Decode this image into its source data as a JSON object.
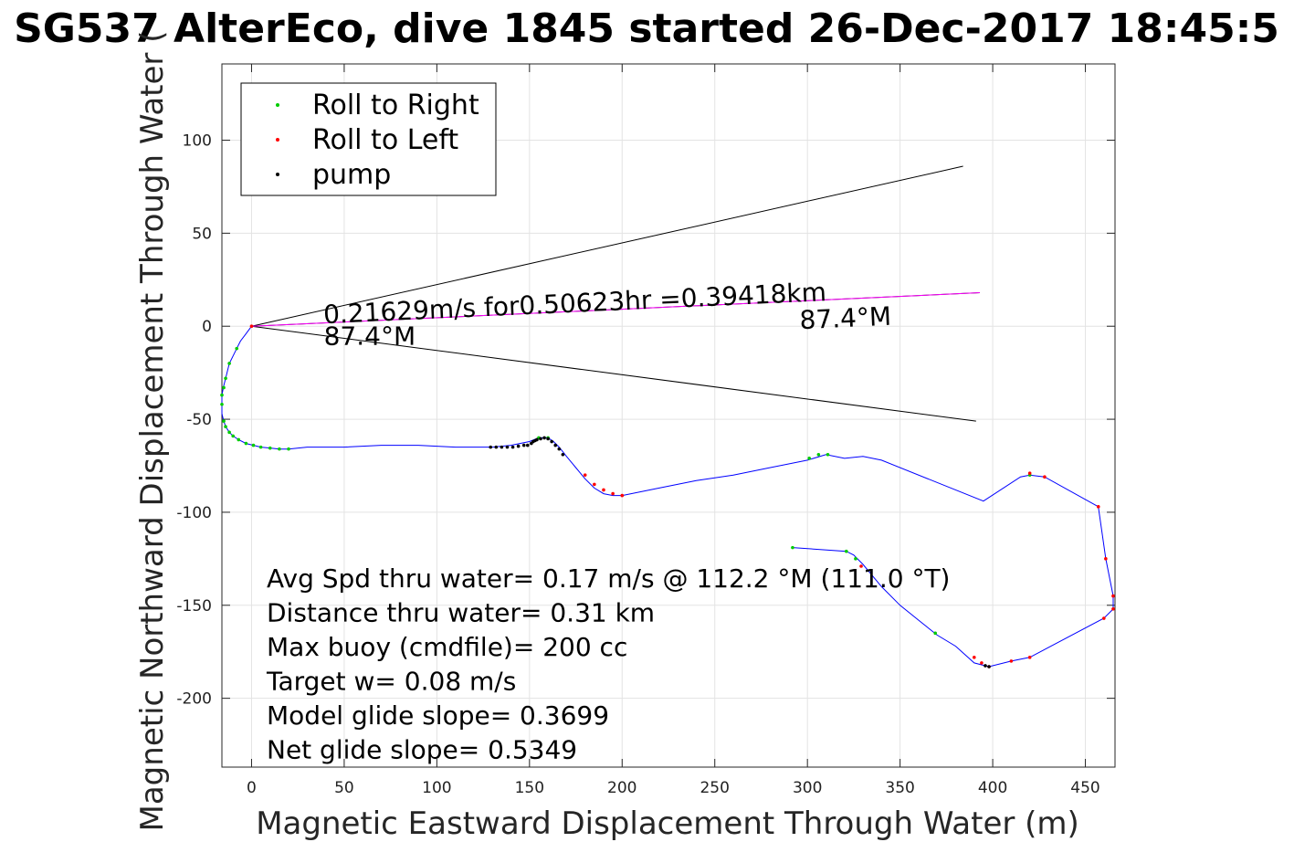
{
  "chart_data": {
    "type": "line",
    "title": "SG537 AlterEco, dive 1845 started 26-Dec-2017 18:45:5",
    "xlabel": "Magnetic Eastward Displacement Through Water (m)",
    "ylabel": "Magnetic Northward Displacement Through Water (",
    "xlim": [
      -16,
      466
    ],
    "ylim": [
      -237,
      141
    ],
    "xticks": [
      0,
      50,
      100,
      150,
      200,
      250,
      300,
      350,
      400,
      450
    ],
    "yticks": [
      -200,
      -150,
      -100,
      -50,
      0,
      50,
      100
    ],
    "xtick_labels": [
      "0",
      "50",
      "100",
      "150",
      "200",
      "250",
      "300",
      "350",
      "400",
      "450"
    ],
    "ytick_labels": [
      "-200",
      "-150",
      "-100",
      "-50",
      "0",
      "50",
      "100"
    ],
    "grid": true,
    "legend": {
      "position": "top-left",
      "entries": [
        {
          "label": "Roll to Right",
          "color": "#00cc00"
        },
        {
          "label": "Roll to Left",
          "color": "#ff0000"
        },
        {
          "label": "pump",
          "color": "#000000"
        }
      ]
    },
    "track": {
      "color": "#0000ff",
      "x": [
        0,
        -3,
        -6,
        -8,
        -10,
        -12,
        -13,
        -14,
        -15,
        -16,
        -16,
        -16,
        -15,
        -14,
        -12,
        -10,
        -7,
        -3,
        1,
        5,
        10,
        15,
        20,
        30,
        50,
        70,
        90,
        110,
        130,
        140,
        150,
        155,
        160,
        163,
        166,
        170,
        175,
        180,
        185,
        190,
        195,
        200,
        220,
        240,
        260,
        280,
        300,
        310,
        320,
        330,
        340,
        395,
        415,
        420,
        428,
        457,
        461,
        465,
        465,
        460,
        420,
        410,
        398,
        394,
        390,
        380,
        370,
        360,
        350,
        340,
        330,
        325,
        321,
        292
      ],
      "y": [
        0,
        -4,
        -8,
        -12,
        -16,
        -20,
        -24,
        -28,
        -32,
        -37,
        -42,
        -47,
        -51,
        -54,
        -57,
        -59,
        -61,
        -63,
        -64,
        -65,
        -65.5,
        -66,
        -66,
        -65,
        -65,
        -64,
        -64,
        -65,
        -65,
        -64,
        -62,
        -60,
        -60,
        -62,
        -65,
        -70,
        -76,
        -82,
        -87,
        -90,
        -91,
        -91,
        -87,
        -83,
        -80,
        -76,
        -72,
        -69,
        -71,
        -70,
        -72,
        -94,
        -81,
        -80,
        -81,
        -97,
        -125,
        -145,
        -152,
        -157,
        -178,
        -180,
        -183,
        -182,
        -181,
        -172,
        -166,
        -158,
        -150,
        -140,
        -128,
        -123,
        -121,
        -119
      ]
    },
    "roll_right": {
      "color": "#00cc00",
      "x": [
        -8,
        -12,
        -14,
        -15,
        -16,
        -16,
        -15,
        -14,
        -12,
        -10,
        -7,
        -3,
        1,
        5,
        10,
        15,
        20,
        155,
        160,
        301,
        306,
        311,
        420,
        292,
        321,
        326,
        369
      ],
      "y": [
        -12,
        -20,
        -28,
        -33,
        -37,
        -42,
        -51,
        -54,
        -57,
        -59,
        -61,
        -63,
        -64,
        -65,
        -65.5,
        -66,
        -66,
        -60,
        -60,
        -71,
        -69,
        -69,
        -80,
        -119,
        -121,
        -125,
        -165
      ]
    },
    "roll_left": {
      "color": "#ff0000",
      "x": [
        0,
        180,
        185,
        190,
        195,
        200,
        420,
        428,
        457,
        461,
        465,
        465,
        460,
        420,
        410,
        398,
        390,
        394,
        329
      ],
      "y": [
        0,
        -80,
        -85,
        -88,
        -90,
        -91,
        -79,
        -81,
        -97,
        -125,
        -145,
        -152,
        -157,
        -178,
        -180,
        -183,
        -178,
        -181,
        -129
      ]
    },
    "pump": {
      "color": "#000000",
      "x": [
        129,
        132,
        135,
        138,
        141,
        144,
        147,
        149,
        151,
        152,
        153,
        154,
        156,
        158,
        160,
        162,
        164,
        166,
        168,
        396,
        398
      ],
      "y": [
        -65,
        -65,
        -65,
        -65,
        -65,
        -64.5,
        -64,
        -64,
        -63,
        -62,
        -61.5,
        -61,
        -60.5,
        -60,
        -60.5,
        -62,
        -64,
        -66,
        -69,
        -182.5,
        -183
      ]
    },
    "rays": [
      {
        "name": "upper",
        "color": "#000000",
        "from": [
          0,
          0
        ],
        "to": [
          384,
          86
        ]
      },
      {
        "name": "mean",
        "color": "#000000",
        "from": [
          0,
          0
        ],
        "to": [
          393,
          18
        ]
      },
      {
        "name": "lower",
        "color": "#000000",
        "from": [
          0,
          0
        ],
        "to": [
          391,
          -51
        ]
      },
      {
        "name": "heading",
        "color": "#ff00ff",
        "from": [
          0,
          0
        ],
        "to": [
          393,
          18
        ]
      }
    ],
    "annotations": [
      {
        "text": "0.21629m/s for0.50623hr =0.39418km",
        "x": 39,
        "y": 1.5,
        "angle_deg": -2.6
      },
      {
        "text": "87.4°M",
        "x": 39,
        "y": -10
      },
      {
        "text": "87.4°M",
        "x": 296,
        "y": -1.5,
        "angle_deg": -2.6
      }
    ],
    "stats": [
      "Avg Spd thru water=  0.17 m/s @ 112.2 °M (111.0 °T)",
      "Distance thru water=  0.31 km",
      "Max buoy (cmdfile)= 200 cc",
      "Target w= 0.08 m/s",
      "Model glide slope= 0.3699",
      "Net glide slope= 0.5349"
    ]
  }
}
